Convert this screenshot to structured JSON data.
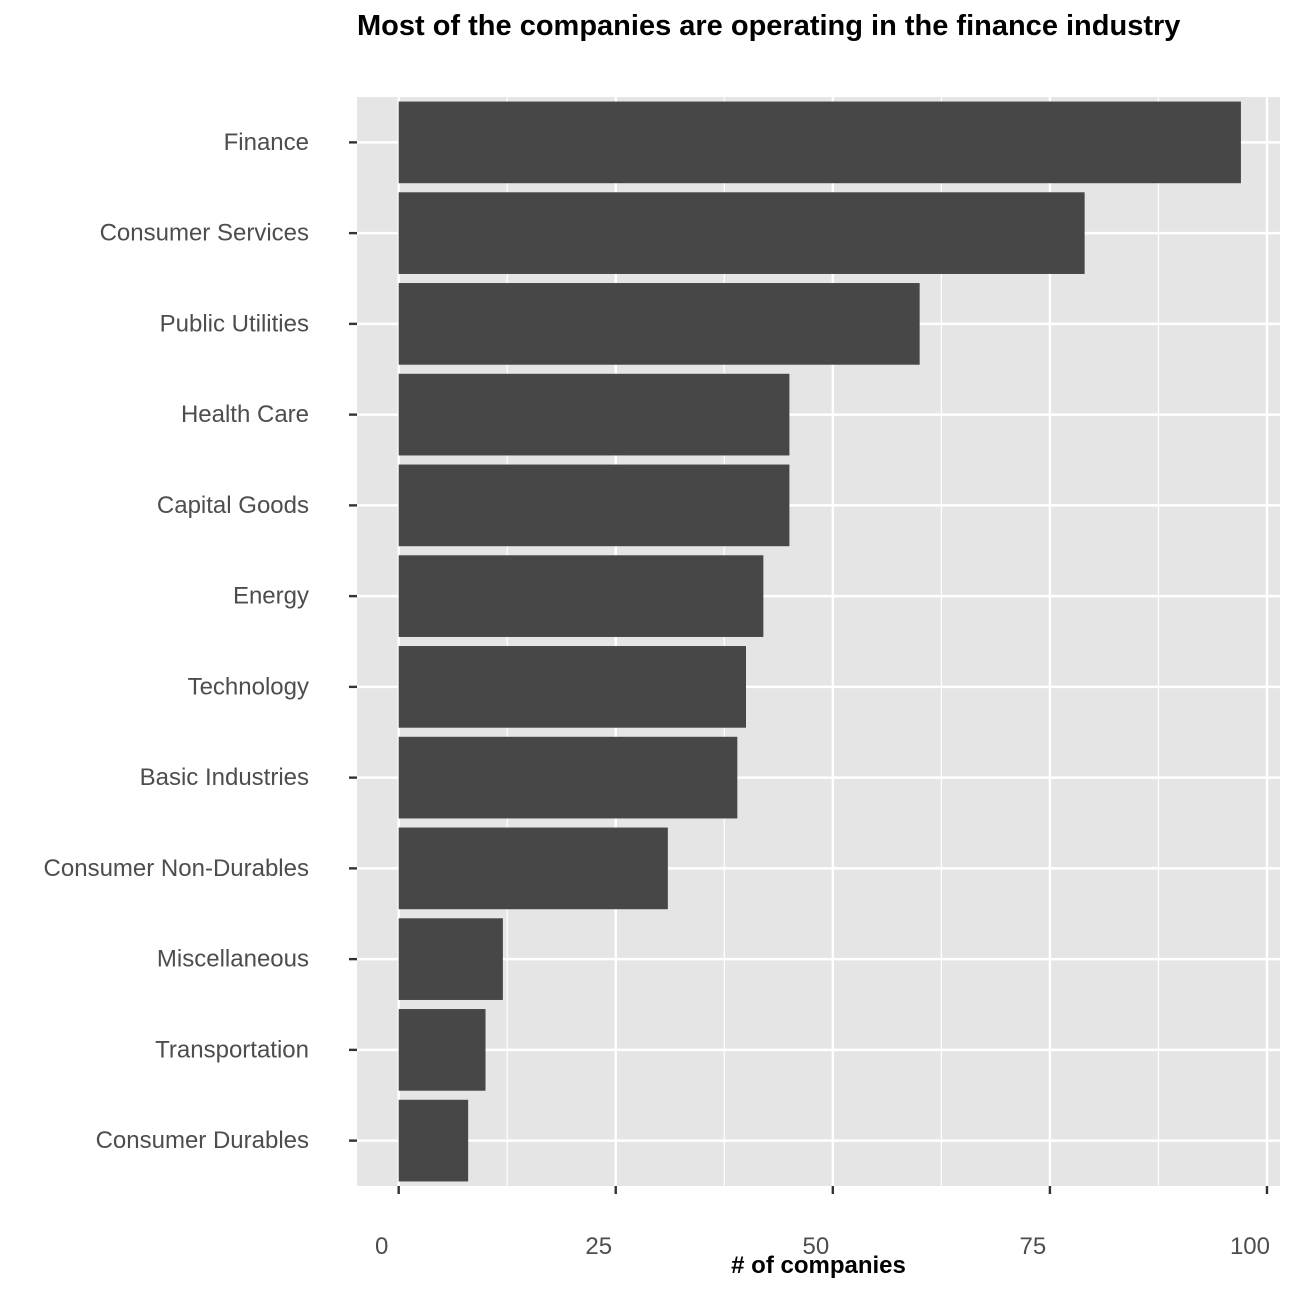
{
  "chart_data": {
    "type": "bar",
    "orientation": "horizontal",
    "title": "Most of the companies are operating in the finance industry",
    "xlabel": "# of companies",
    "ylabel": "",
    "categories": [
      "Finance",
      "Consumer Services",
      "Public Utilities",
      "Health Care",
      "Capital Goods",
      "Energy",
      "Technology",
      "Basic Industries",
      "Consumer Non-Durables",
      "Miscellaneous",
      "Transportation",
      "Consumer Durables"
    ],
    "values": [
      97,
      79,
      60,
      45,
      45,
      42,
      40,
      39,
      31,
      12,
      10,
      8
    ],
    "xlim": [
      -4.8,
      101.5
    ],
    "xticks": [
      0,
      25,
      50,
      75,
      100
    ],
    "xtick_labels": [
      "0",
      "25",
      "50",
      "75",
      "100"
    ],
    "grid": true,
    "bar_color": "#474747",
    "panel_color": "#e5e5e5",
    "grid_color": "#ffffff"
  }
}
